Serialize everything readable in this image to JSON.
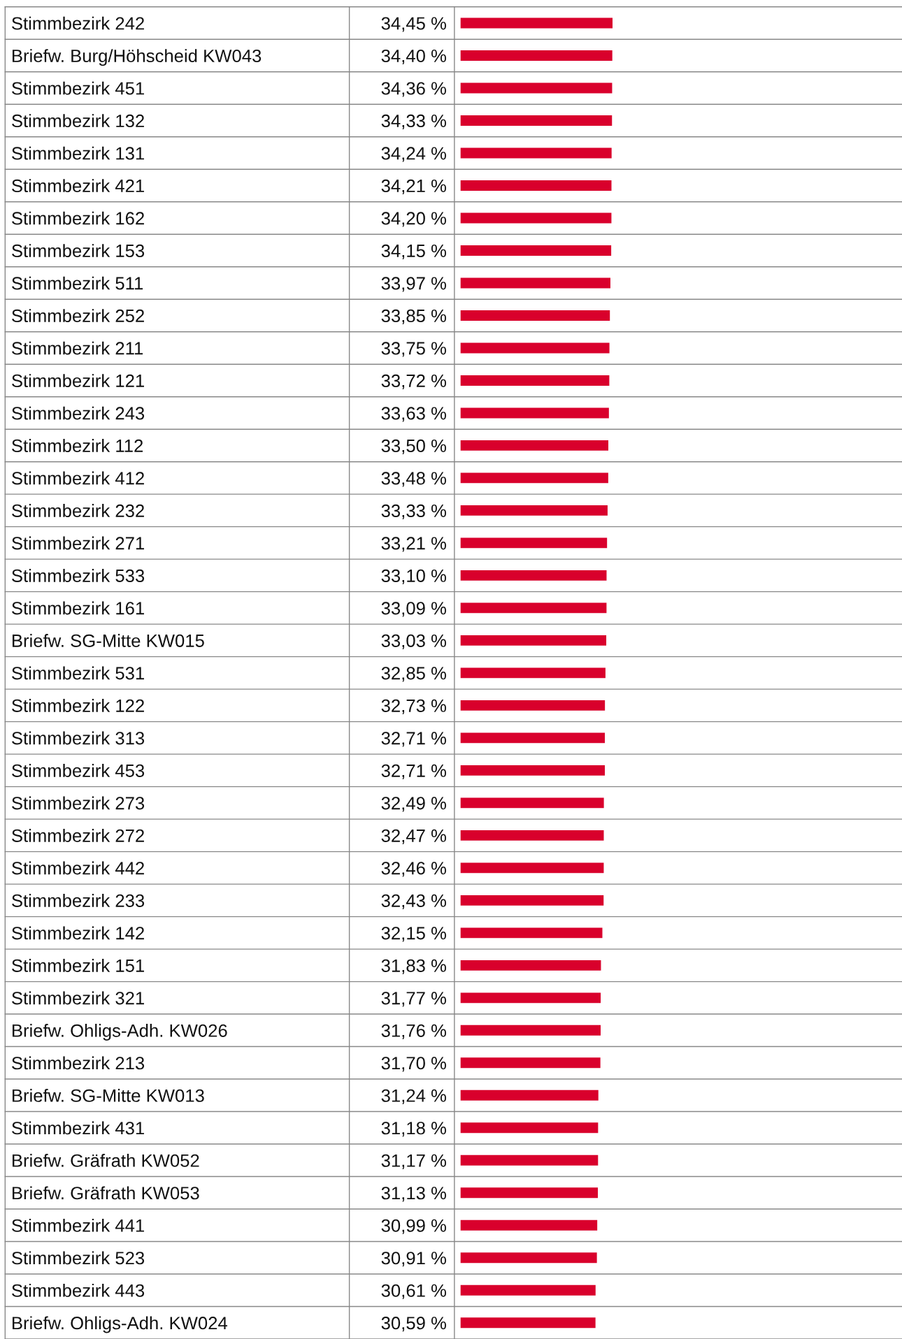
{
  "chart_data": {
    "type": "bar",
    "orientation": "horizontal",
    "color": "#d9002c",
    "xlim": [
      0,
      100
    ],
    "categories": [
      "Stimmbezirk 242",
      "Briefw. Burg/Höhscheid KW043",
      "Stimmbezirk 451",
      "Stimmbezirk 132",
      "Stimmbezirk 131",
      "Stimmbezirk 421",
      "Stimmbezirk 162",
      "Stimmbezirk 153",
      "Stimmbezirk 511",
      "Stimmbezirk 252",
      "Stimmbezirk 211",
      "Stimmbezirk 121",
      "Stimmbezirk 243",
      "Stimmbezirk 112",
      "Stimmbezirk 412",
      "Stimmbezirk 232",
      "Stimmbezirk 271",
      "Stimmbezirk 533",
      "Stimmbezirk 161",
      "Briefw. SG-Mitte KW015",
      "Stimmbezirk 531",
      "Stimmbezirk 122",
      "Stimmbezirk 313",
      "Stimmbezirk 453",
      "Stimmbezirk 273",
      "Stimmbezirk 272",
      "Stimmbezirk 442",
      "Stimmbezirk 233",
      "Stimmbezirk 142",
      "Stimmbezirk 151",
      "Stimmbezirk 321",
      "Briefw. Ohligs-Adh. KW026",
      "Stimmbezirk 213",
      "Briefw. SG-Mitte KW013",
      "Stimmbezirk 431",
      "Briefw. Gräfrath KW052",
      "Briefw. Gräfrath KW053",
      "Stimmbezirk 441",
      "Stimmbezirk 523",
      "Stimmbezirk 443",
      "Briefw. Ohligs-Adh. KW024"
    ],
    "values": [
      34.45,
      34.4,
      34.36,
      34.33,
      34.24,
      34.21,
      34.2,
      34.15,
      33.97,
      33.85,
      33.75,
      33.72,
      33.63,
      33.5,
      33.48,
      33.33,
      33.21,
      33.1,
      33.09,
      33.03,
      32.85,
      32.73,
      32.71,
      32.71,
      32.49,
      32.47,
      32.46,
      32.43,
      32.15,
      31.83,
      31.77,
      31.76,
      31.7,
      31.24,
      31.18,
      31.17,
      31.13,
      30.99,
      30.91,
      30.61,
      30.59
    ],
    "value_labels": [
      "34,45 %",
      "34,40 %",
      "34,36 %",
      "34,33 %",
      "34,24 %",
      "34,21 %",
      "34,20 %",
      "34,15 %",
      "33,97 %",
      "33,85 %",
      "33,75 %",
      "33,72 %",
      "33,63 %",
      "33,50 %",
      "33,48 %",
      "33,33 %",
      "33,21 %",
      "33,10 %",
      "33,09 %",
      "33,03 %",
      "32,85 %",
      "32,73 %",
      "32,71 %",
      "32,71 %",
      "32,49 %",
      "32,47 %",
      "32,46 %",
      "32,43 %",
      "32,15 %",
      "31,83 %",
      "31,77 %",
      "31,76 %",
      "31,70 %",
      "31,24 %",
      "31,18 %",
      "31,17 %",
      "31,13 %",
      "30,99 %",
      "30,91 %",
      "30,61 %",
      "30,59 %"
    ]
  }
}
